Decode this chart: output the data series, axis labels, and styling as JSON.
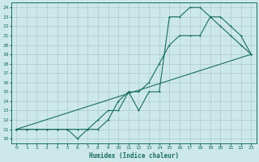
{
  "xlabel": "Humidex (Indice chaleur)",
  "ylabel": "",
  "bg_color": "#cce8e8",
  "grid_color": "#aacccc",
  "line_color": "#1a6e60",
  "xlim": [
    -0.5,
    23.5
  ],
  "ylim": [
    9.5,
    24.5
  ],
  "xticks": [
    0,
    1,
    2,
    3,
    4,
    5,
    6,
    7,
    8,
    9,
    10,
    11,
    12,
    13,
    14,
    15,
    16,
    17,
    18,
    19,
    20,
    21,
    22,
    23
  ],
  "yticks": [
    10,
    11,
    12,
    13,
    14,
    15,
    16,
    17,
    18,
    19,
    20,
    21,
    22,
    23,
    24
  ],
  "line1_x": [
    0,
    1,
    2,
    3,
    4,
    5,
    6,
    7,
    8,
    9,
    10,
    11,
    12,
    13,
    14,
    15,
    16,
    17,
    18,
    19,
    20,
    21,
    22,
    23
  ],
  "line1_y": [
    11,
    11,
    11,
    11,
    11,
    11,
    10,
    11,
    12,
    13,
    13,
    15,
    15,
    16,
    18,
    20,
    21,
    21,
    21,
    23,
    23,
    22,
    21,
    19
  ],
  "line2_x": [
    0,
    1,
    2,
    3,
    4,
    5,
    6,
    7,
    8,
    9,
    10,
    11,
    12,
    13,
    14,
    15,
    16,
    17,
    18,
    19,
    20,
    21,
    22,
    23
  ],
  "line2_y": [
    11,
    11,
    11,
    11,
    11,
    11,
    11,
    11,
    11,
    12,
    14,
    15,
    13,
    15,
    15,
    23,
    23,
    24,
    24,
    23,
    22,
    21,
    20,
    19
  ],
  "line3_x": [
    0,
    23
  ],
  "line3_y": [
    11,
    19
  ]
}
